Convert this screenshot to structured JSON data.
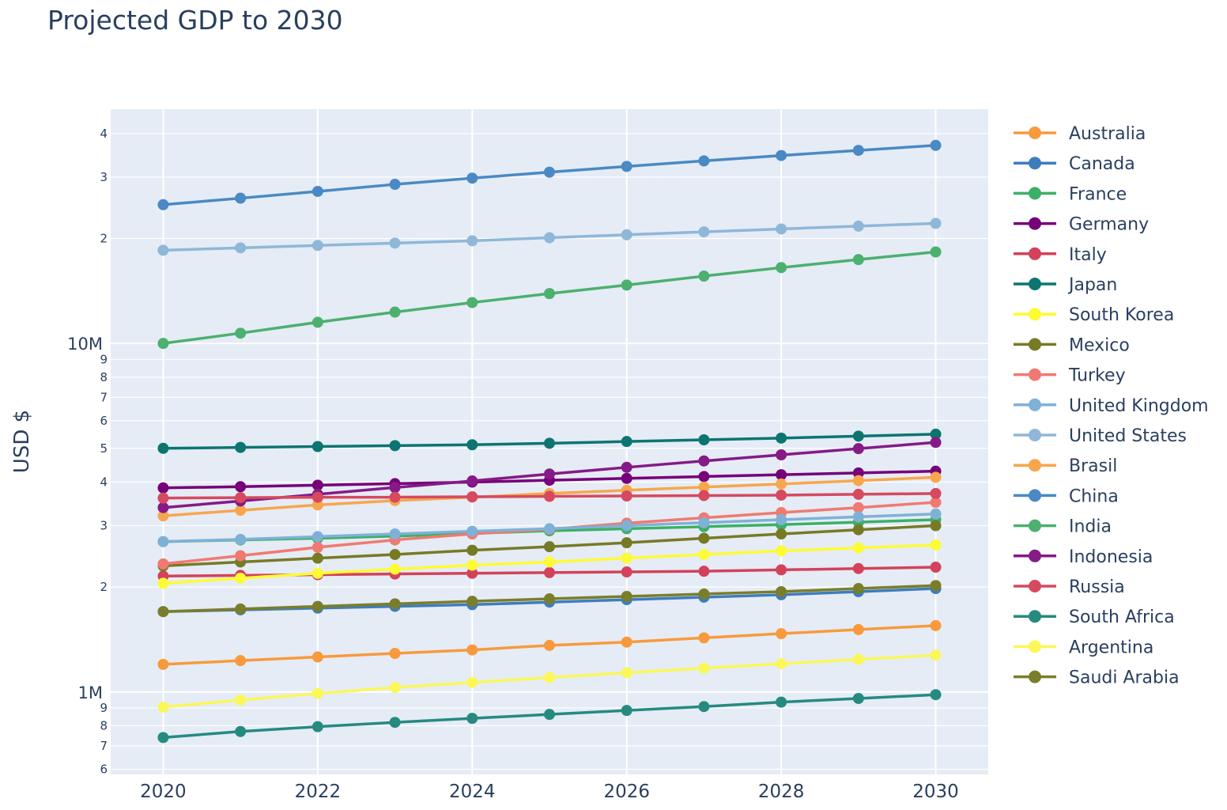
{
  "chart_data": {
    "type": "line",
    "title": "Projected GDP to 2030",
    "ylabel": "USD $",
    "xlabel": "",
    "y_scale": "log",
    "ylim": [
      580000,
      47000000
    ],
    "xlim": [
      2019.32,
      2030.68
    ],
    "x_ticks": [
      2020,
      2022,
      2024,
      2026,
      2028,
      2030
    ],
    "y_major_ticks": [
      {
        "value": 1000000,
        "label": "1M"
      },
      {
        "value": 10000000,
        "label": "10M"
      }
    ],
    "y_minor_ticks": [
      {
        "value": 600000,
        "label": "6"
      },
      {
        "value": 700000,
        "label": "7"
      },
      {
        "value": 800000,
        "label": "8"
      },
      {
        "value": 900000,
        "label": "9"
      },
      {
        "value": 2000000,
        "label": "2"
      },
      {
        "value": 3000000,
        "label": "3"
      },
      {
        "value": 4000000,
        "label": "4"
      },
      {
        "value": 5000000,
        "label": "5"
      },
      {
        "value": 6000000,
        "label": "6"
      },
      {
        "value": 7000000,
        "label": "7"
      },
      {
        "value": 8000000,
        "label": "8"
      },
      {
        "value": 9000000,
        "label": "9"
      },
      {
        "value": 20000000,
        "label": "2"
      },
      {
        "value": 30000000,
        "label": "3"
      },
      {
        "value": 40000000,
        "label": "4"
      }
    ],
    "grid": true,
    "legend_position": "right",
    "x": [
      2020,
      2021,
      2022,
      2023,
      2024,
      2025,
      2026,
      2027,
      2028,
      2029,
      2030
    ],
    "series": [
      {
        "name": "Australia",
        "color": "#f89a3c",
        "values": [
          1200000,
          1230000,
          1260000,
          1290000,
          1320000,
          1360000,
          1390000,
          1430000,
          1470000,
          1510000,
          1550000
        ]
      },
      {
        "name": "Canada",
        "color": "#3e7dbd",
        "values": [
          1700000,
          1720000,
          1740000,
          1760000,
          1780000,
          1810000,
          1840000,
          1870000,
          1900000,
          1940000,
          1980000
        ]
      },
      {
        "name": "France",
        "color": "#3cb066",
        "values": [
          2700000,
          2730000,
          2760000,
          2800000,
          2850000,
          2900000,
          2940000,
          2980000,
          3020000,
          3070000,
          3120000
        ]
      },
      {
        "name": "Germany",
        "color": "#760079",
        "values": [
          3850000,
          3880000,
          3920000,
          3960000,
          4000000,
          4050000,
          4100000,
          4150000,
          4200000,
          4250000,
          4300000
        ]
      },
      {
        "name": "Italy",
        "color": "#d3425a",
        "values": [
          2150000,
          2160000,
          2170000,
          2180000,
          2190000,
          2200000,
          2210000,
          2220000,
          2240000,
          2260000,
          2280000
        ]
      },
      {
        "name": "Japan",
        "color": "#0d7570",
        "values": [
          5000000,
          5030000,
          5060000,
          5090000,
          5120000,
          5170000,
          5230000,
          5290000,
          5350000,
          5420000,
          5490000
        ]
      },
      {
        "name": "South Korea",
        "color": "#fdfb33",
        "values": [
          2050000,
          2120000,
          2190000,
          2250000,
          2310000,
          2360000,
          2420000,
          2480000,
          2540000,
          2590000,
          2640000
        ]
      },
      {
        "name": "Mexico",
        "color": "#777a25",
        "values": [
          2300000,
          2360000,
          2420000,
          2480000,
          2550000,
          2610000,
          2680000,
          2760000,
          2840000,
          2920000,
          3000000
        ]
      },
      {
        "name": "Turkey",
        "color": "#f07a71",
        "values": [
          2330000,
          2460000,
          2600000,
          2730000,
          2840000,
          2930000,
          3050000,
          3160000,
          3270000,
          3380000,
          3500000
        ]
      },
      {
        "name": "United Kingdom",
        "color": "#7fb1d7",
        "values": [
          2700000,
          2740000,
          2790000,
          2840000,
          2890000,
          2940000,
          3000000,
          3060000,
          3120000,
          3180000,
          3240000
        ]
      },
      {
        "name": "United States",
        "color": "#8fb7d8",
        "values": [
          18500000,
          18800000,
          19100000,
          19400000,
          19700000,
          20100000,
          20500000,
          20900000,
          21300000,
          21700000,
          22100000
        ]
      },
      {
        "name": "Brasil",
        "color": "#f8a64d",
        "values": [
          3200000,
          3320000,
          3440000,
          3540000,
          3620000,
          3710000,
          3790000,
          3870000,
          3950000,
          4040000,
          4130000
        ]
      },
      {
        "name": "China",
        "color": "#4a89c3",
        "values": [
          25000000,
          26100000,
          27300000,
          28600000,
          29800000,
          31000000,
          32200000,
          33400000,
          34600000,
          35800000,
          37000000
        ]
      },
      {
        "name": "India",
        "color": "#4cb06e",
        "values": [
          10000000,
          10700000,
          11500000,
          12300000,
          13100000,
          13900000,
          14700000,
          15600000,
          16500000,
          17400000,
          18300000
        ]
      },
      {
        "name": "Indonesia",
        "color": "#861a86",
        "values": [
          3380000,
          3530000,
          3690000,
          3860000,
          4030000,
          4220000,
          4410000,
          4600000,
          4790000,
          4990000,
          5200000
        ]
      },
      {
        "name": "Russia",
        "color": "#d6495f",
        "values": [
          3600000,
          3610000,
          3620000,
          3620000,
          3630000,
          3640000,
          3650000,
          3660000,
          3670000,
          3690000,
          3710000
        ]
      },
      {
        "name": "South Africa",
        "color": "#268a80",
        "values": [
          740000,
          770000,
          795000,
          818000,
          840000,
          862000,
          885000,
          908000,
          935000,
          958000,
          982000
        ]
      },
      {
        "name": "Argentina",
        "color": "#fbf758",
        "values": [
          905000,
          948000,
          990000,
          1030000,
          1065000,
          1100000,
          1135000,
          1170000,
          1205000,
          1240000,
          1275000
        ]
      },
      {
        "name": "Saudi Arabia",
        "color": "#7a7e2a",
        "values": [
          1700000,
          1730000,
          1760000,
          1790000,
          1820000,
          1850000,
          1880000,
          1910000,
          1940000,
          1980000,
          2020000
        ]
      }
    ]
  }
}
